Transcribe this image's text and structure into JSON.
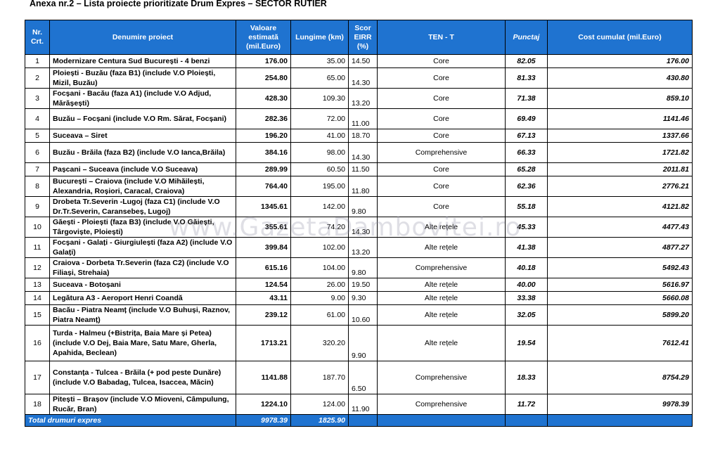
{
  "title": "Anexa nr.2 – Lista proiecte prioritizate Drum Expres – SECTOR RUTIER",
  "watermark": "www.GazetaDambovitei.ro",
  "headers": {
    "nr": "Nr. Crt.",
    "name": "Denumire proiect",
    "value": "Valoare estimată (mil.Euro)",
    "length": "Lungime (km)",
    "eirr": "Scor EIRR (%)",
    "ten": "TEN - T",
    "punctaj": "Punctaj",
    "cost": "Cost cumulat (mil.Euro)"
  },
  "rows": [
    {
      "nr": "1",
      "name": "Modernizare Centura Sud București - 4 benzi",
      "value": "176.00",
      "length": "35.00",
      "eirr": "14.50",
      "ten": "Core",
      "punctaj": "82.05",
      "cost": "176.00"
    },
    {
      "nr": "2",
      "name": "Ploiești - Buzău (faza B1) (include V.O Ploiești, Mizil, Buzău)",
      "value": "254.80",
      "length": "65.00",
      "eirr": "14.30",
      "ten": "Core",
      "punctaj": "81.33",
      "cost": "430.80"
    },
    {
      "nr": "3",
      "name": "Focșani - Bacău (faza A1) (include V.O Adjud, Mărășești)",
      "value": "428.30",
      "length": "109.30",
      "eirr": "13.20",
      "ten": "Core",
      "punctaj": "71.38",
      "cost": "859.10"
    },
    {
      "nr": "4",
      "name": "Buzău – Focșani (include V.O Rm. Sărat, Focșani)",
      "value": "282.36",
      "length": "72.00",
      "eirr": "11.00",
      "ten": "Core",
      "punctaj": "69.49",
      "cost": "1141.46"
    },
    {
      "nr": "5",
      "name": "Suceava – Siret",
      "value": "196.20",
      "length": "41.00",
      "eirr": "18.70",
      "ten": "Core",
      "punctaj": "67.13",
      "cost": "1337.66"
    },
    {
      "nr": "6",
      "name": "Buzău - Brăila (faza B2) (include V.O Ianca,Brăila)",
      "value": "384.16",
      "length": "98.00",
      "eirr": "14.30",
      "ten": "Comprehensive",
      "punctaj": "66.33",
      "cost": "1721.82"
    },
    {
      "nr": "7",
      "name": "Pașcani – Suceava (include V.O Suceava)",
      "value": "289.99",
      "length": "60.50",
      "eirr": "11.50",
      "ten": "Core",
      "punctaj": "65.28",
      "cost": "2011.81"
    },
    {
      "nr": "8",
      "name": "București – Craiova (include V.O Mihăilești, Alexandria, Roșiori, Caracal, Craiova)",
      "value": "764.40",
      "length": "195.00",
      "eirr": "11.80",
      "ten": "Core",
      "punctaj": "62.36",
      "cost": "2776.21"
    },
    {
      "nr": "9",
      "name": "Drobeta Tr.Severin -Lugoj (faza C1) (include V.O Dr.Tr.Severin, Caransebeș, Lugoj)",
      "value": "1345.61",
      "length": "142.00",
      "eirr": "9.80",
      "ten": "Core",
      "punctaj": "55.18",
      "cost": "4121.82"
    },
    {
      "nr": "10",
      "name": "Găești - Ploiești (faza B3) (include V.O Găiești, Târgoviște, Ploiești)",
      "value": "355.61",
      "length": "74.20",
      "eirr": "14.30",
      "ten": "Alte rețele",
      "punctaj": "45.33",
      "cost": "4477.43"
    },
    {
      "nr": "11",
      "name": "Focșani - Galați - Giurgiulești (faza A2) (include V.O Galați)",
      "value": "399.84",
      "length": "102.00",
      "eirr": "13.20",
      "ten": "Alte rețele",
      "punctaj": "41.38",
      "cost": "4877.27"
    },
    {
      "nr": "12",
      "name": "Craiova - Dorbeta Tr.Severin (faza C2) (include V.O Filiași, Strehaia)",
      "value": "615.16",
      "length": "104.00",
      "eirr": "9.80",
      "ten": "Comprehensive",
      "punctaj": "40.18",
      "cost": "5492.43"
    },
    {
      "nr": "13",
      "name": "Suceava - Botoșani",
      "value": "124.54",
      "length": "26.00",
      "eirr": "19.50",
      "ten": "Alte rețele",
      "punctaj": "40.00",
      "cost": "5616.97"
    },
    {
      "nr": "14",
      "name": "Legătura A3 - Aeroport Henri Coandă",
      "value": "43.11",
      "length": "9.00",
      "eirr": "9.30",
      "ten": "Alte rețele",
      "punctaj": "33.38",
      "cost": "5660.08"
    },
    {
      "nr": "15",
      "name": "Bacău - Piatra Neamț (include V.O Buhuși, Raznov, Piatra Neamț)",
      "value": "239.12",
      "length": "61.00",
      "eirr": "10.60",
      "ten": "Alte rețele",
      "punctaj": "32.05",
      "cost": "5899.20"
    },
    {
      "nr": "16",
      "name": "Turda - Halmeu (+Bistrița, Baia Mare și Petea) (include V.O Dej, Baia Mare, Satu Mare, Gherla, Apahida, Beclean)",
      "value": "1713.21",
      "length": "320.20",
      "eirr": "9.90",
      "ten": "Alte rețele",
      "punctaj": "19.54",
      "cost": "7612.41"
    },
    {
      "nr": "17",
      "name": "Constanța - Tulcea - Brăila (+ pod peste Dunăre) (include V.O Babadag, Tulcea, Isaccea, Măcin)",
      "value": "1141.88",
      "length": "187.70",
      "eirr": "6.50",
      "ten": "Comprehensive",
      "punctaj": "18.33",
      "cost": "8754.29"
    },
    {
      "nr": "18",
      "name": "Pitești – Brașov (include V.O Mioveni, Câmpulung, Rucăr, Bran)",
      "value": "1224.10",
      "length": "124.00",
      "eirr": "11.90",
      "ten": "Comprehensive",
      "punctaj": "11.72",
      "cost": "9978.39"
    }
  ],
  "total": {
    "label": "Total drumuri expres",
    "value": "9978.39",
    "length": "1825.90"
  }
}
